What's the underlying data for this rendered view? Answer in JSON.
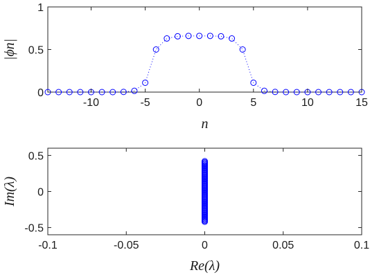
{
  "chart_data": [
    {
      "type": "scatter",
      "marker": "open-circle",
      "line_style": "dotted",
      "color": "#0000ff",
      "xlabel": "n",
      "ylabel": "|ϕn|",
      "xlim": [
        -14,
        15
      ],
      "ylim": [
        0,
        1
      ],
      "xticks": [
        -10,
        -5,
        0,
        5,
        10,
        15
      ],
      "xtick_labels": [
        "-10",
        "-5",
        "0",
        "5",
        "10",
        "15"
      ],
      "yticks": [
        0,
        0.5,
        1
      ],
      "ytick_labels": [
        "0",
        "0.5",
        "1"
      ],
      "grid": false,
      "x": [
        -14,
        -13,
        -12,
        -11,
        -10,
        -9,
        -8,
        -7,
        -6,
        -5,
        -4,
        -3,
        -2,
        -1,
        0,
        1,
        2,
        3,
        4,
        5,
        6,
        7,
        8,
        9,
        10,
        11,
        12,
        13,
        14,
        15
      ],
      "y": [
        0,
        0,
        0,
        0,
        0,
        0,
        0,
        0.002,
        0.015,
        0.11,
        0.5,
        0.63,
        0.655,
        0.66,
        0.66,
        0.66,
        0.655,
        0.63,
        0.5,
        0.11,
        0.015,
        0.002,
        0,
        0,
        0,
        0,
        0,
        0,
        0,
        0
      ]
    },
    {
      "type": "scatter",
      "marker": "open-circle",
      "color": "#0000ff",
      "xlabel": "Re(λ)",
      "ylabel": "Im(λ)",
      "xlim": [
        -0.1,
        0.1
      ],
      "ylim": [
        -0.6,
        0.6
      ],
      "xticks": [
        -0.1,
        -0.05,
        0,
        0.05,
        0.1
      ],
      "xtick_labels": [
        "-0.1",
        "-0.05",
        "0",
        "0.05",
        "0.1"
      ],
      "yticks": [
        -0.5,
        0,
        0.5
      ],
      "ytick_labels": [
        "-0.5",
        "0",
        "0.5"
      ],
      "grid": false,
      "x": [
        0,
        0,
        0,
        0,
        0,
        0,
        0,
        0,
        0,
        0,
        0,
        0,
        0,
        0,
        0,
        0,
        0,
        0,
        0,
        0,
        0,
        0,
        0,
        0,
        0,
        0,
        0,
        0,
        0,
        0,
        0,
        0,
        0,
        0,
        0,
        0,
        0,
        0,
        0,
        0,
        0,
        0,
        0,
        0,
        0,
        0,
        0,
        0,
        0,
        0,
        0,
        0,
        0,
        0,
        0,
        0,
        0,
        0,
        0,
        0,
        0
      ],
      "y": [
        -0.42,
        -0.406,
        -0.392,
        -0.378,
        -0.364,
        -0.35,
        -0.336,
        -0.322,
        -0.308,
        -0.294,
        -0.28,
        -0.266,
        -0.252,
        -0.238,
        -0.224,
        -0.21,
        -0.196,
        -0.182,
        -0.168,
        -0.154,
        -0.14,
        -0.126,
        -0.112,
        -0.098,
        -0.084,
        -0.07,
        -0.056,
        -0.042,
        -0.028,
        -0.014,
        0,
        0.014,
        0.028,
        0.042,
        0.056,
        0.07,
        0.084,
        0.098,
        0.112,
        0.126,
        0.14,
        0.154,
        0.168,
        0.182,
        0.196,
        0.21,
        0.224,
        0.238,
        0.252,
        0.266,
        0.28,
        0.294,
        0.308,
        0.322,
        0.336,
        0.35,
        0.364,
        0.378,
        0.392,
        0.406,
        0.42
      ]
    }
  ]
}
